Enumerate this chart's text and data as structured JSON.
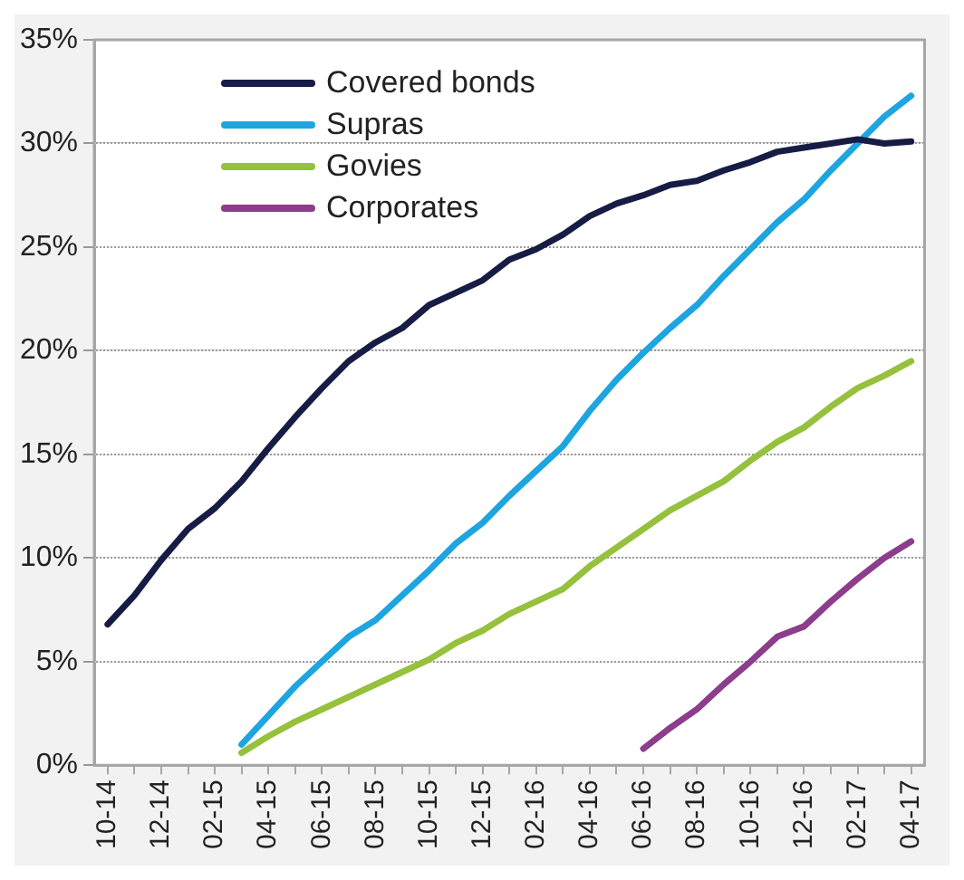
{
  "chart_data": {
    "type": "line",
    "categories": [
      "10-14",
      null,
      "12-14",
      null,
      "02-15",
      null,
      "04-15",
      null,
      "06-15",
      null,
      "08-15",
      null,
      "10-15",
      null,
      "12-15",
      null,
      "02-16",
      null,
      "04-16",
      null,
      "06-16",
      null,
      "08-16",
      null,
      "10-16",
      null,
      "12-16",
      null,
      "02-17",
      null,
      "04-17"
    ],
    "series": [
      {
        "name": "Covered bonds",
        "color": "#171c45",
        "values": [
          6.8,
          8.2,
          9.9,
          11.4,
          12.4,
          13.7,
          15.3,
          16.8,
          18.2,
          19.5,
          20.4,
          21.1,
          22.2,
          22.8,
          23.4,
          24.4,
          24.9,
          25.6,
          26.5,
          27.1,
          27.5,
          28.0,
          28.2,
          28.7,
          29.1,
          29.6,
          29.8,
          30.0,
          30.2,
          30.0,
          30.1
        ]
      },
      {
        "name": "Supras",
        "color": "#1ea5e0",
        "values": [
          null,
          null,
          null,
          null,
          null,
          1.0,
          2.4,
          3.8,
          5.0,
          6.2,
          7.0,
          8.2,
          9.4,
          10.7,
          11.7,
          13.0,
          14.2,
          15.4,
          17.1,
          18.6,
          19.9,
          21.1,
          22.2,
          23.6,
          24.9,
          26.2,
          27.3,
          28.7,
          30.0,
          31.3,
          32.3
        ]
      },
      {
        "name": "Govies",
        "color": "#95c13d",
        "values": [
          null,
          null,
          null,
          null,
          null,
          0.6,
          1.4,
          2.1,
          2.7,
          3.3,
          3.9,
          4.5,
          5.1,
          5.9,
          6.5,
          7.3,
          7.9,
          8.5,
          9.6,
          10.5,
          11.4,
          12.3,
          13.0,
          13.7,
          14.7,
          15.6,
          16.3,
          17.3,
          18.2,
          18.8,
          19.5
        ]
      },
      {
        "name": "Corporates",
        "color": "#8c3d8c",
        "values": [
          null,
          null,
          null,
          null,
          null,
          null,
          null,
          null,
          null,
          null,
          null,
          null,
          null,
          null,
          null,
          null,
          null,
          null,
          null,
          null,
          0.8,
          1.8,
          2.7,
          3.9,
          5.0,
          6.2,
          6.7,
          7.9,
          9.0,
          10.0,
          10.8
        ]
      }
    ],
    "ylim": [
      0,
      35
    ],
    "yticks": [
      {
        "value": 0,
        "label": "0%"
      },
      {
        "value": 5,
        "label": "5%"
      },
      {
        "value": 10,
        "label": "10%"
      },
      {
        "value": 15,
        "label": "15%"
      },
      {
        "value": 20,
        "label": "20%"
      },
      {
        "value": 25,
        "label": "25%"
      },
      {
        "value": 30,
        "label": "30%"
      },
      {
        "value": 35,
        "label": "35%"
      }
    ],
    "grid": "y",
    "legend": "top left",
    "marker": "none",
    "line_style": "solid"
  }
}
